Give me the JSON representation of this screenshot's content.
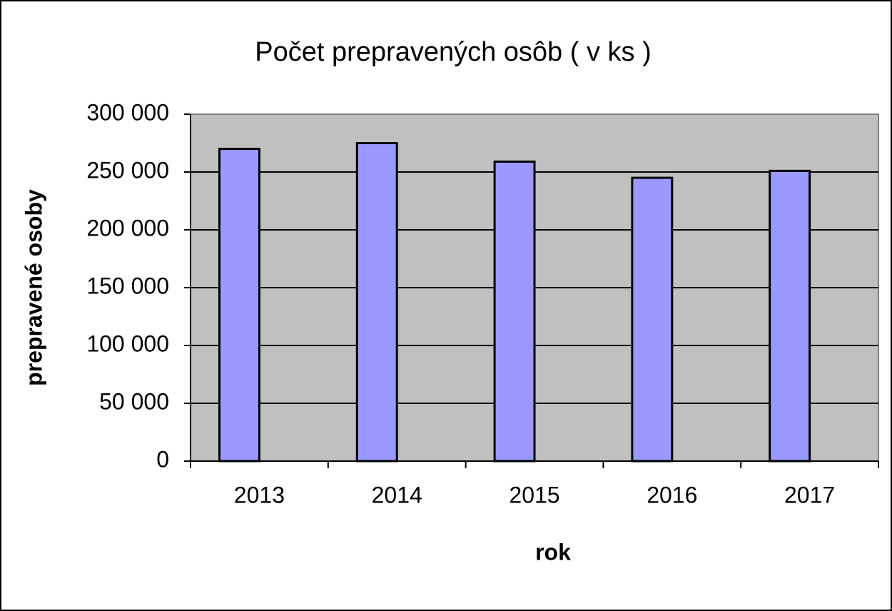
{
  "chart_data": {
    "type": "bar",
    "title": "Počet prepravených osôb ( v ks )",
    "x_label": "rok",
    "y_label": "prepravené osoby",
    "categories": [
      "2013",
      "2014",
      "2015",
      "2016",
      "2017"
    ],
    "values": [
      270000,
      275000,
      259000,
      245000,
      251000
    ],
    "color": "#9999ff",
    "ylim": [
      0,
      300000
    ],
    "yticks": [
      0,
      {
        "value": 50000,
        "label": "50 000"
      },
      {
        "value": 100000,
        "label": "100 000"
      },
      {
        "value": 150000,
        "label": "150 000"
      },
      {
        "value": 200000,
        "label": "200 000"
      },
      {
        "value": 250000,
        "label": "250 000"
      },
      {
        "value": 300000,
        "label": "300 000"
      }
    ],
    "grid": true
  }
}
